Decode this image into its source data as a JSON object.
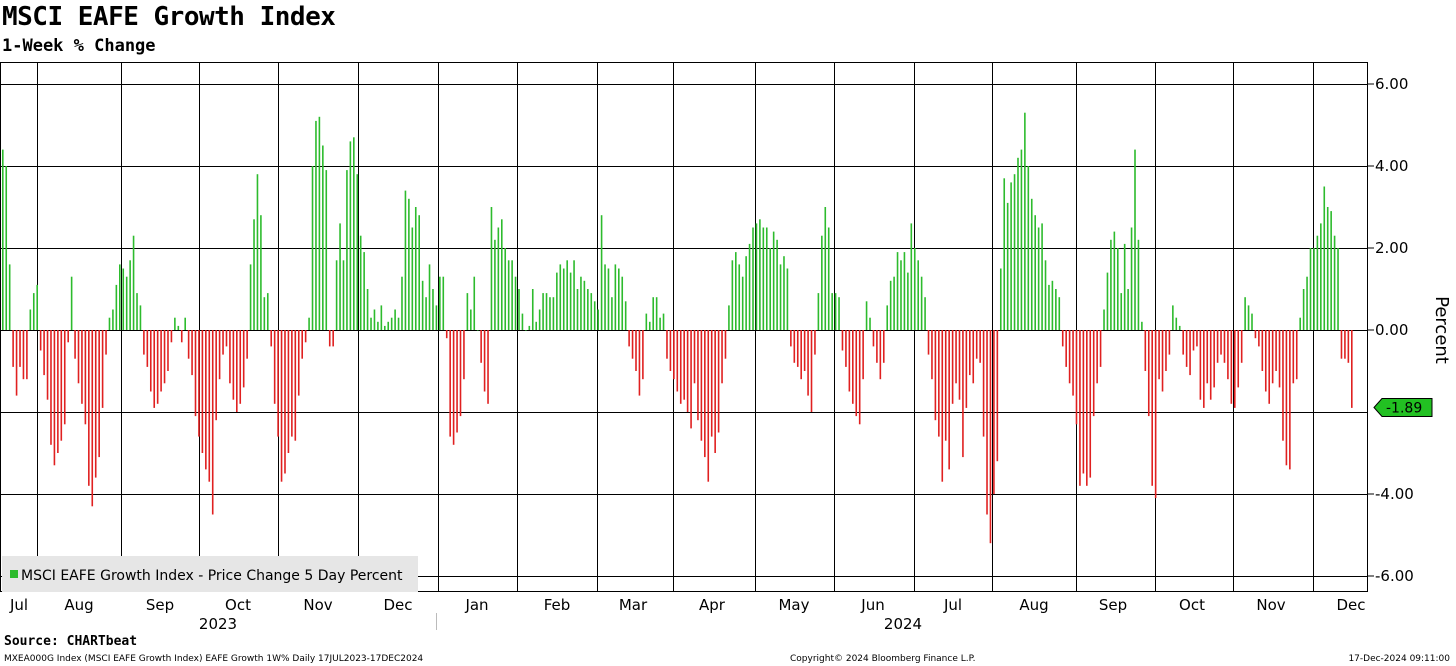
{
  "chart_data": {
    "type": "bar",
    "title": "MSCI EAFE Growth Index",
    "subtitle": "1-Week % Change",
    "ylabel": "Percent",
    "ylim": [
      -6.4,
      6.4
    ],
    "y_ticks": [
      "6.00",
      "4.00",
      "2.00",
      "0.00",
      "-4.00",
      "-6.00"
    ],
    "y_tick_values": [
      6,
      4,
      2,
      0,
      -4,
      -6
    ],
    "last_value": -1.89,
    "last_value_label": "-1.89",
    "legend": "MSCI EAFE Growth Index - Price Change 5 Day Percent",
    "x_month_labels": [
      "Jul",
      "Aug",
      "Sep",
      "Oct",
      "Nov",
      "Dec",
      "Jan",
      "Feb",
      "Mar",
      "Apr",
      "May",
      "Jun",
      "Jul",
      "Aug",
      "Sep",
      "Oct",
      "Nov",
      "Dec"
    ],
    "year_labels": [
      "2023",
      "2024"
    ],
    "date_range": "17JUL2023-17DEC2024",
    "series": [
      {
        "name": "MSCI EAFE Growth Index - Price Change 5 Day Percent",
        "values": [
          4.4,
          4.0,
          1.6,
          -0.9,
          -1.6,
          -0.9,
          -1.2,
          -1.2,
          0.5,
          0.9,
          1.1,
          -0.5,
          -1.1,
          -1.7,
          -2.8,
          -3.3,
          -3.0,
          -2.7,
          -2.3,
          -0.3,
          1.3,
          -0.7,
          -1.3,
          -1.8,
          -2.3,
          -3.8,
          -4.3,
          -3.6,
          -3.1,
          -1.9,
          -0.6,
          0.3,
          0.5,
          1.1,
          1.6,
          1.5,
          1.3,
          1.7,
          2.3,
          0.9,
          0.6,
          -0.6,
          -0.9,
          -1.5,
          -1.9,
          -1.8,
          -1.5,
          -1.3,
          -1.0,
          -0.3,
          0.3,
          0.1,
          -0.3,
          0.3,
          -0.7,
          -1.1,
          -2.1,
          -2.6,
          -3.0,
          -3.4,
          -3.7,
          -4.5,
          -2.2,
          -1.2,
          -0.6,
          -0.4,
          -1.3,
          -1.7,
          -2.0,
          -1.8,
          -1.4,
          -0.7,
          1.6,
          2.7,
          3.8,
          2.8,
          0.8,
          0.9,
          -0.4,
          -1.8,
          -2.6,
          -3.7,
          -3.5,
          -3.0,
          -2.6,
          -2.7,
          -1.6,
          -0.7,
          -0.3,
          0.3,
          4.0,
          5.1,
          5.2,
          4.5,
          3.9,
          -0.4,
          -0.4,
          1.7,
          2.6,
          1.7,
          3.9,
          4.6,
          4.7,
          3.8,
          2.3,
          1.9,
          1.0,
          0.3,
          0.5,
          0.2,
          0.6,
          0.1,
          0.2,
          0.3,
          0.5,
          0.3,
          1.3,
          3.4,
          3.2,
          2.5,
          3.0,
          2.8,
          1.2,
          0.8,
          1.6,
          1.0,
          0.6,
          1.3,
          1.3,
          -0.2,
          -2.6,
          -2.8,
          -2.5,
          -2.1,
          -1.2,
          0.9,
          0.5,
          1.3,
          0.0,
          -0.8,
          -1.5,
          -1.8,
          3.0,
          2.2,
          2.5,
          2.7,
          2.0,
          1.7,
          1.7,
          1.3,
          1.0,
          0.4,
          0.0,
          0.1,
          1.0,
          0.2,
          0.5,
          0.9,
          0.9,
          0.8,
          0.8,
          1.4,
          1.6,
          1.5,
          1.7,
          1.4,
          1.7,
          1.0,
          1.3,
          1.2,
          1.0,
          0.9,
          0.7,
          0.5,
          2.8,
          1.6,
          1.5,
          0.8,
          1.6,
          1.5,
          1.3,
          0.7,
          -0.4,
          -0.7,
          -1.0,
          -1.6,
          -1.2,
          0.4,
          0.2,
          0.8,
          0.8,
          0.3,
          0.4,
          -0.7,
          -1.0,
          -1.2,
          -1.5,
          -1.8,
          -1.7,
          -2.0,
          -2.4,
          -1.3,
          -2.2,
          -2.7,
          -3.1,
          -3.7,
          -2.6,
          -3.0,
          -2.5,
          -1.3,
          -0.7,
          0.6,
          1.7,
          1.9,
          1.6,
          1.3,
          1.8,
          2.1,
          2.5,
          2.6,
          2.7,
          2.5,
          2.5,
          2.0,
          2.4,
          2.2,
          1.6,
          1.8,
          1.5,
          -0.4,
          -0.8,
          -0.9,
          -1.2,
          -1.0,
          -1.6,
          -2.0,
          -0.6,
          0.9,
          2.3,
          3.0,
          2.5,
          0.9,
          0.9,
          0.8,
          -0.5,
          -0.9,
          -1.5,
          -1.8,
          -2.1,
          -2.3,
          -1.2,
          0.7,
          0.3,
          -0.4,
          -0.8,
          -1.2,
          -0.8,
          0.6,
          1.2,
          1.3,
          1.9,
          1.7,
          1.9,
          1.4,
          2.6,
          2.0,
          1.7,
          1.3,
          0.8,
          -0.6,
          -1.2,
          -2.2,
          -2.6,
          -3.7,
          -2.7,
          -3.4,
          -1.8,
          -1.3,
          -1.7,
          -3.1,
          -1.9,
          -1.1,
          -1.3,
          -0.7,
          -0.8,
          -2.6,
          -4.5,
          -5.2,
          -4.0,
          -3.2,
          1.5,
          3.7,
          3.1,
          3.6,
          3.8,
          4.2,
          4.4,
          5.3,
          4.0,
          3.2,
          2.8,
          2.5,
          2.6,
          1.7,
          1.1,
          1.2,
          1.0,
          0.8,
          -0.4,
          -0.9,
          -1.3,
          -1.6,
          -2.3,
          -3.8,
          -3.5,
          -3.8,
          -3.6,
          -2.1,
          -1.3,
          -0.9,
          0.5,
          1.4,
          2.2,
          2.4,
          2.0,
          0.9,
          2.1,
          1.0,
          2.5,
          4.4,
          2.2,
          0.2,
          -1.0,
          -2.1,
          -3.8,
          -4.1,
          -1.2,
          -1.5,
          -1.0,
          -0.6,
          0.6,
          0.3,
          0.1,
          -0.6,
          -0.9,
          -1.1,
          -0.5,
          -0.4,
          -1.7,
          -1.9,
          -1.3,
          -1.7,
          -1.4,
          -0.8,
          -0.6,
          -0.8,
          -1.2,
          -1.8,
          -1.9,
          -1.4,
          -0.8,
          0.8,
          0.6,
          0.4,
          -0.2,
          -0.4,
          -1.0,
          -1.5,
          -1.8,
          -1.3,
          -1.0,
          -1.4,
          -2.7,
          -3.3,
          -3.4,
          -1.3,
          -1.2,
          0.3,
          1.0,
          1.3,
          2.0,
          2.0,
          2.3,
          2.6,
          3.5,
          3.0,
          2.9,
          2.3,
          2.0,
          -0.7,
          -0.7,
          -0.8,
          -1.9
        ]
      }
    ]
  },
  "footer": {
    "source": "Source: CHARTbeat",
    "left": "MXEA000G Index (MSCI EAFE Growth Index) EAFE Growth 1W%  Daily 17JUL2023-17DEC2024",
    "center": "Copyright© 2024 Bloomberg Finance L.P.",
    "right": "17-Dec-2024 09:11:00"
  }
}
